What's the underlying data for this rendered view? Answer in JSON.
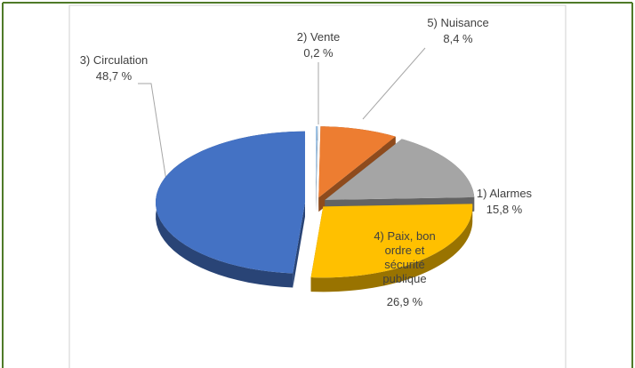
{
  "chart_data": {
    "type": "pie",
    "categories": [
      "2) Vente",
      "5) Nuisance",
      "1) Alarmes",
      "4) Paix, bon ordre et sécurité publique",
      "3) Circulation"
    ],
    "values": [
      0.2,
      8.4,
      15.8,
      26.9,
      48.7
    ],
    "value_labels": [
      "0,2 %",
      "8,4 %",
      "15,8 %",
      "26,9 %",
      "48,7 %"
    ],
    "colors": [
      "#9dc3e6",
      "#ed7d31",
      "#a5a5a5",
      "#ffc000",
      "#4472c4"
    ]
  }
}
